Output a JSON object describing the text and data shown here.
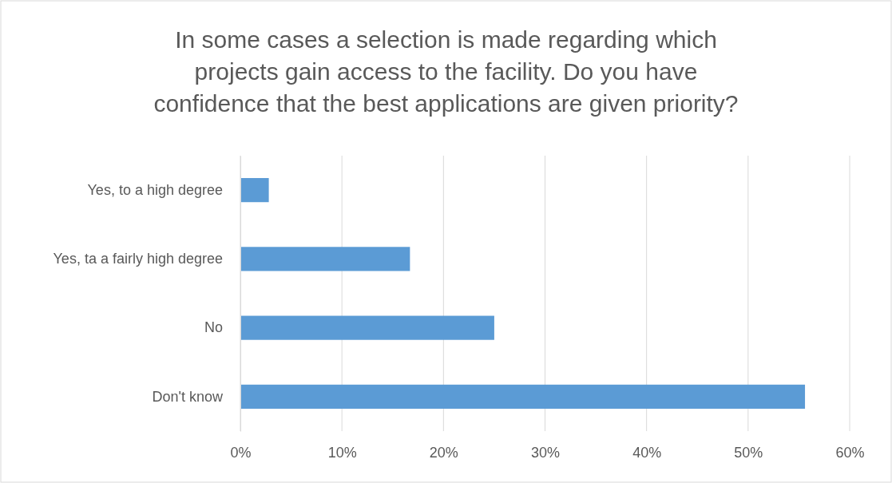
{
  "chart_data": {
    "type": "bar",
    "orientation": "horizontal",
    "title": "In some cases a selection is made regarding which projects gain access to the facility. Do you have confidence that the best applications are given priority?",
    "categories": [
      "Yes, to a high degree",
      "Yes, ta a fairly high degree",
      "No",
      "Don't know"
    ],
    "values": [
      2.8,
      16.7,
      25,
      55.6
    ],
    "color": "#5b9bd5",
    "xlim": [
      0,
      60
    ],
    "xticks": [
      {
        "value": 0,
        "label": "0%"
      },
      {
        "value": 10,
        "label": "10%"
      },
      {
        "value": 20,
        "label": "20%"
      },
      {
        "value": 30,
        "label": "30%"
      },
      {
        "value": 40,
        "label": "40%"
      },
      {
        "value": 50,
        "label": "50%"
      },
      {
        "value": 60,
        "label": "60%"
      }
    ],
    "grid": "x"
  }
}
